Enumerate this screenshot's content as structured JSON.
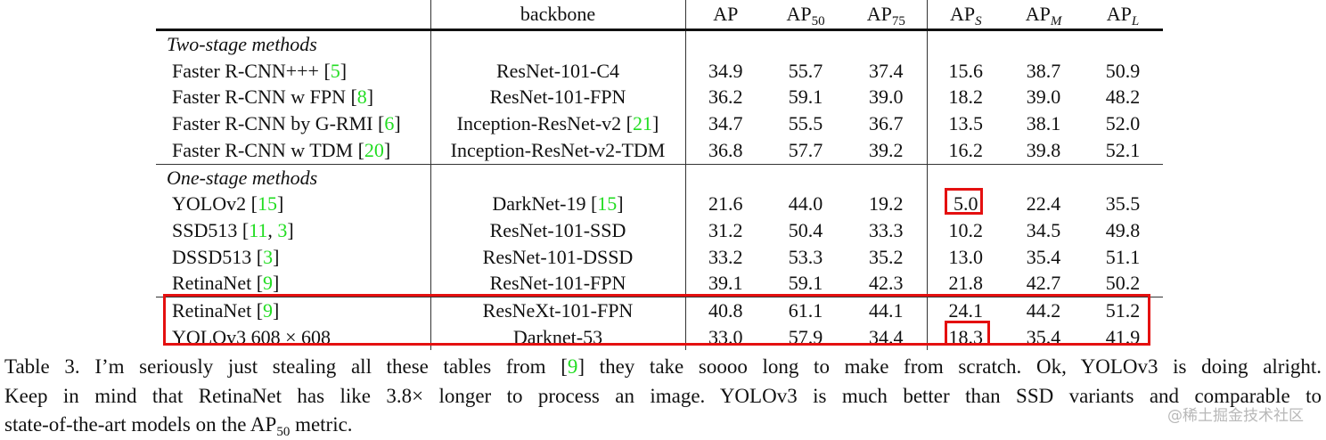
{
  "table": {
    "headers": [
      {
        "main": ""
      },
      {
        "main": "backbone"
      },
      {
        "main": "AP"
      },
      {
        "main": "AP",
        "sub": "50"
      },
      {
        "main": "AP",
        "sub": "75"
      },
      {
        "main": "AP",
        "sub": "S",
        "sub_italic": true
      },
      {
        "main": "AP",
        "sub": "M",
        "sub_italic": true
      },
      {
        "main": "AP",
        "sub": "L",
        "sub_italic": true
      }
    ],
    "sections": [
      {
        "label": "Two-stage methods",
        "rows": [
          {
            "method": "Faster R-CNN+++",
            "refs": [
              "5"
            ],
            "backbone": "ResNet-101-C4",
            "values": [
              "34.9",
              "55.7",
              "37.4",
              "15.6",
              "38.7",
              "50.9"
            ],
            "bold": []
          },
          {
            "method": "Faster R-CNN w FPN",
            "refs": [
              "8"
            ],
            "backbone": "ResNet-101-FPN",
            "values": [
              "36.2",
              "59.1",
              "39.0",
              "18.2",
              "39.0",
              "48.2"
            ],
            "bold": []
          },
          {
            "method": "Faster R-CNN by G-RMI",
            "refs": [
              "6"
            ],
            "backbone": "Inception-ResNet-v2",
            "backbone_refs": [
              "21"
            ],
            "values": [
              "34.7",
              "55.5",
              "36.7",
              "13.5",
              "38.1",
              "52.0"
            ],
            "bold": []
          },
          {
            "method": "Faster R-CNN w TDM",
            "refs": [
              "20"
            ],
            "backbone": "Inception-ResNet-v2-TDM",
            "values": [
              "36.8",
              "57.7",
              "39.2",
              "16.2",
              "39.8",
              "52.1"
            ],
            "bold": [
              5
            ]
          }
        ]
      },
      {
        "label": "One-stage methods",
        "rows": [
          {
            "method": "YOLOv2",
            "refs": [
              "15"
            ],
            "backbone": "DarkNet-19",
            "backbone_refs": [
              "15"
            ],
            "values": [
              "21.6",
              "44.0",
              "19.2",
              "5.0",
              "22.4",
              "35.5"
            ],
            "bold": []
          },
          {
            "method": "SSD513",
            "refs": [
              "11",
              "3"
            ],
            "backbone": "ResNet-101-SSD",
            "values": [
              "31.2",
              "50.4",
              "33.3",
              "10.2",
              "34.5",
              "49.8"
            ],
            "bold": []
          },
          {
            "method": "DSSD513",
            "refs": [
              "3"
            ],
            "backbone": "ResNet-101-DSSD",
            "values": [
              "33.2",
              "53.3",
              "35.2",
              "13.0",
              "35.4",
              "51.1"
            ],
            "bold": []
          },
          {
            "method": "RetinaNet",
            "refs": [
              "9"
            ],
            "backbone": "ResNet-101-FPN",
            "values": [
              "39.1",
              "59.1",
              "42.3",
              "21.8",
              "42.7",
              "50.2"
            ],
            "bold": []
          },
          {
            "method": "RetinaNet",
            "refs": [
              "9"
            ],
            "backbone": "ResNeXt-101-FPN",
            "values": [
              "40.8",
              "61.1",
              "44.1",
              "24.1",
              "44.2",
              "51.2"
            ],
            "bold": [
              0,
              1,
              2,
              3,
              4
            ],
            "rule_above": true
          },
          {
            "method": "YOLOv3 608 × 608",
            "refs": [],
            "backbone": "Darknet-53",
            "values": [
              "33.0",
              "57.9",
              "34.4",
              "18.3",
              "35.4",
              "41.9"
            ],
            "bold": []
          }
        ]
      }
    ],
    "highlight_color": "#e41010",
    "ref_color": "#22dd22"
  },
  "caption": {
    "line1_a": "Table 3. I’m seriously just stealing all these tables from [",
    "line1_ref": "9",
    "line1_b": "] they take soooo long to make from scratch.  Ok, YOLOv3 is doing alright.",
    "line2": "Keep in mind that RetinaNet has like 3.8× longer to process an image.  YOLOv3 is much better than SSD variants and comparable to",
    "line3_a": "state-of-the-art models on the AP",
    "line3_sub": "50",
    "line3_b": " metric."
  },
  "watermark": "@稀土掘金技术社区"
}
